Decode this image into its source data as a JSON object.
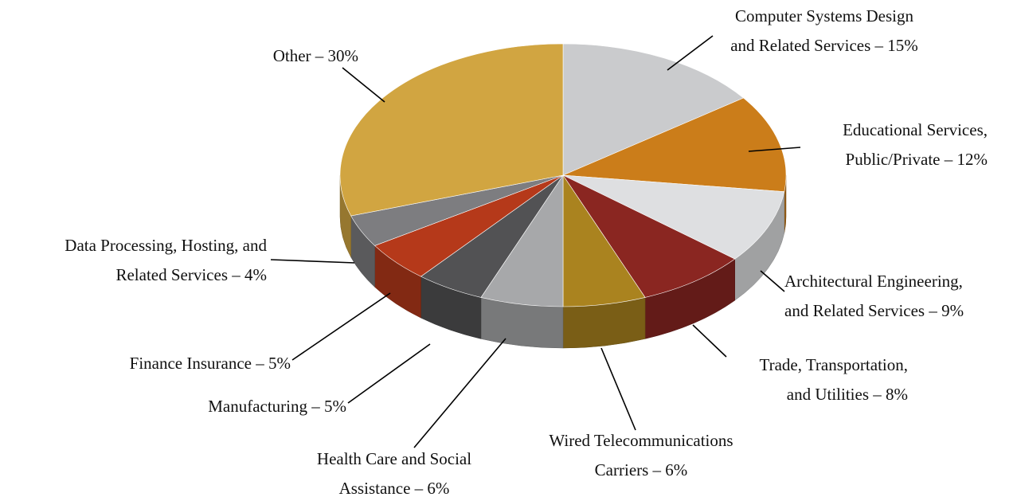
{
  "chart_data": {
    "type": "pie3d",
    "labels": [
      [
        "Computer Systems Design",
        "and Related Services – 15%"
      ],
      [
        "Educational Services,",
        "Public/Private – 12%"
      ],
      [
        "Architectural Engineering,",
        "and Related Services – 9%"
      ],
      [
        "Trade, Transportation,",
        "and Utilities – 8%"
      ],
      [
        "Wired Telecommunications",
        "Carriers – 6%"
      ],
      [
        "Health Care and Social",
        "Assistance – 6%"
      ],
      [
        "Manufacturing – 5%"
      ],
      [
        "Finance Insurance – 5%"
      ],
      [
        "Data Processing, Hosting, and",
        "Related Services – 4%"
      ],
      [
        "Other – 30%"
      ]
    ],
    "values": [
      15,
      12,
      9,
      8,
      6,
      6,
      5,
      5,
      4,
      30
    ],
    "colors": [
      "#cacbcd",
      "#cb7d1a",
      "#dedfe1",
      "#8a2621",
      "#aa831f",
      "#a7a8aa",
      "#525254",
      "#b5391a",
      "#7d7d80",
      "#d1a541"
    ]
  }
}
